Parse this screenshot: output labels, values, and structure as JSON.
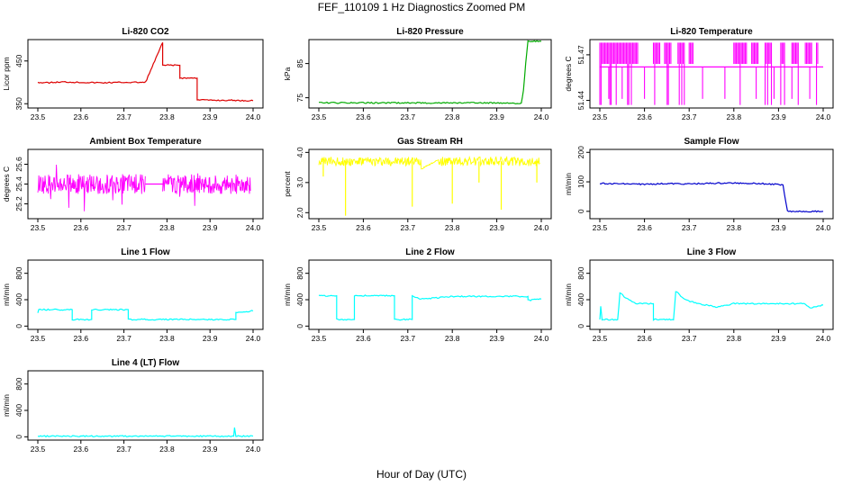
{
  "figure": {
    "title": "FEF_110109  1 Hz Diagnostics Zoomed PM",
    "xlabel": "Hour of Day (UTC)"
  },
  "chart_data": [
    {
      "type": "line",
      "title": "Li-820 CO2",
      "ylabel": "Licor ppm",
      "color": "#dd0000",
      "xlim": [
        23.5,
        24.0
      ],
      "ylim": [
        340,
        500
      ],
      "x_ticks": [
        "23.5",
        "23.6",
        "23.7",
        "23.8",
        "23.9",
        "24.0"
      ],
      "y_ticks": [
        {
          "v": 350,
          "label": "350"
        },
        {
          "v": 450,
          "label": "450"
        }
      ],
      "series": [
        {
          "name": "CO2",
          "x": [
            23.5,
            23.52,
            23.56,
            23.6,
            23.65,
            23.7,
            23.75,
            23.79,
            23.79,
            23.83,
            23.83,
            23.87,
            23.87,
            23.9,
            23.95,
            24.0
          ],
          "y": [
            400,
            399,
            401,
            400,
            399,
            400,
            400,
            493,
            440,
            440,
            410,
            410,
            360,
            358,
            358,
            357
          ]
        }
      ]
    },
    {
      "type": "line",
      "title": "Li-820 Pressure",
      "ylabel": "kPa",
      "color": "#00aa00",
      "xlim": [
        23.5,
        24.0
      ],
      "ylim": [
        72,
        92
      ],
      "x_ticks": [
        "23.5",
        "23.6",
        "23.7",
        "23.8",
        "23.9",
        "24.0"
      ],
      "y_ticks": [
        {
          "v": 75,
          "label": "75"
        },
        {
          "v": 85,
          "label": "85"
        }
      ],
      "series": [
        {
          "name": "Pressure",
          "x": [
            23.5,
            23.7,
            23.93,
            23.955,
            23.96,
            23.965,
            23.97,
            23.99,
            24.0
          ],
          "y": [
            73.5,
            73.5,
            73.5,
            73.3,
            77,
            85,
            91.5,
            91.5,
            91.5
          ]
        }
      ]
    },
    {
      "type": "line",
      "title": "Li-820 Temperature",
      "ylabel": "degrees C",
      "color": "#ff00ff",
      "xlim": [
        23.5,
        24.0
      ],
      "ylim": [
        51.435,
        51.48
      ],
      "x_ticks": [
        "23.5",
        "23.6",
        "23.7",
        "23.8",
        "23.9",
        "24.0"
      ],
      "y_ticks": [
        {
          "v": 51.44,
          "label": "51.44"
        },
        {
          "v": 51.47,
          "label": "51.47"
        }
      ],
      "series": [
        {
          "name": "Temperature",
          "baseline": 51.462,
          "high": 51.478,
          "low": 51.437,
          "bands": [
            [
              23.5,
              23.585
            ],
            [
              23.62,
              23.635
            ],
            [
              23.645,
              23.66
            ],
            [
              23.675,
              23.69
            ],
            [
              23.7,
              23.71
            ],
            [
              23.8,
              23.83
            ],
            [
              23.84,
              23.855
            ],
            [
              23.87,
              23.885
            ],
            [
              23.905,
              23.915
            ],
            [
              23.93,
              23.945
            ],
            [
              23.96,
              23.975
            ],
            [
              23.985,
              23.99
            ]
          ]
        }
      ]
    },
    {
      "type": "line",
      "title": "Ambient Box Temperature",
      "ylabel": "degrees C",
      "color": "#ff00ff",
      "xlim": [
        23.5,
        24.0
      ],
      "ylim": [
        25.05,
        25.75
      ],
      "x_ticks": [
        "23.5",
        "23.6",
        "23.7",
        "23.8",
        "23.9",
        "24.0"
      ],
      "y_ticks": [
        {
          "v": 25.2,
          "label": "25.2"
        },
        {
          "v": 25.4,
          "label": "25.4"
        },
        {
          "v": 25.6,
          "label": "25.6"
        }
      ],
      "series": [
        {
          "name": "Ambient",
          "baseline": 25.4,
          "amplitude": 0.1,
          "gap": [
            23.75,
            23.79
          ]
        }
      ]
    },
    {
      "type": "line",
      "title": "Gas Stream RH",
      "ylabel": "percent",
      "color": "#ffff00",
      "xlim": [
        23.5,
        24.0
      ],
      "ylim": [
        1.8,
        4.1
      ],
      "x_ticks": [
        "23.5",
        "23.6",
        "23.7",
        "23.8",
        "23.9",
        "24.0"
      ],
      "y_ticks": [
        {
          "v": 2.0,
          "label": "2.0"
        },
        {
          "v": 3.0,
          "label": "3.0"
        },
        {
          "v": 4.0,
          "label": "4.0"
        }
      ],
      "series": [
        {
          "name": "RH",
          "baseline": 3.7,
          "amplitude": 0.15,
          "dips": [
            [
              23.51,
              3.2
            ],
            [
              23.56,
              1.9
            ],
            [
              23.71,
              2.2
            ],
            [
              23.8,
              2.3
            ],
            [
              23.86,
              3.0
            ],
            [
              23.91,
              2.1
            ],
            [
              23.99,
              3.0
            ]
          ]
        }
      ]
    },
    {
      "type": "line",
      "title": "Sample Flow",
      "ylabel": "ml/min",
      "color": "#0000cc",
      "xlim": [
        23.5,
        24.0
      ],
      "ylim": [
        -25,
        210
      ],
      "x_ticks": [
        "23.5",
        "23.6",
        "23.7",
        "23.8",
        "23.9",
        "24.0"
      ],
      "y_ticks": [
        {
          "v": 0,
          "label": "0"
        },
        {
          "v": 100,
          "label": "100"
        },
        {
          "v": 200,
          "label": "200"
        }
      ],
      "series": [
        {
          "name": "Sample",
          "x": [
            23.5,
            23.55,
            23.6,
            23.65,
            23.7,
            23.75,
            23.8,
            23.85,
            23.91,
            23.92,
            23.95,
            24.0
          ],
          "y": [
            95,
            93,
            92,
            94,
            93,
            95,
            96,
            95,
            90,
            0,
            0,
            0
          ]
        }
      ]
    },
    {
      "type": "line",
      "title": "Line 1 Flow",
      "ylabel": "ml/min",
      "color": "#00ffff",
      "xlim": [
        23.5,
        24.0
      ],
      "ylim": [
        -50,
        1000
      ],
      "x_ticks": [
        "23.5",
        "23.6",
        "23.7",
        "23.8",
        "23.9",
        "24.0"
      ],
      "y_ticks": [
        {
          "v": 0,
          "label": "0"
        },
        {
          "v": 400,
          "label": "400"
        },
        {
          "v": 800,
          "label": "800"
        }
      ],
      "series": [
        {
          "name": "Line 1",
          "x": [
            23.5,
            23.502,
            23.58,
            23.58,
            23.625,
            23.625,
            23.71,
            23.71,
            23.96,
            23.96,
            24.0
          ],
          "y": [
            200,
            250,
            250,
            100,
            100,
            250,
            250,
            100,
            100,
            210,
            230
          ]
        }
      ]
    },
    {
      "type": "line",
      "title": "Line 2 Flow",
      "ylabel": "ml/min",
      "color": "#00ffff",
      "xlim": [
        23.5,
        24.0
      ],
      "ylim": [
        -50,
        1000
      ],
      "x_ticks": [
        "23.5",
        "23.6",
        "23.7",
        "23.8",
        "23.9",
        "24.0"
      ],
      "y_ticks": [
        {
          "v": 0,
          "label": "0"
        },
        {
          "v": 400,
          "label": "400"
        },
        {
          "v": 800,
          "label": "800"
        }
      ],
      "series": [
        {
          "name": "Line 2",
          "x": [
            23.5,
            23.54,
            23.54,
            23.58,
            23.58,
            23.67,
            23.67,
            23.71,
            23.71,
            23.73,
            23.8,
            23.97,
            23.97,
            24.0
          ],
          "y": [
            460,
            460,
            100,
            100,
            460,
            460,
            100,
            100,
            460,
            410,
            450,
            450,
            390,
            410
          ]
        }
      ]
    },
    {
      "type": "line",
      "title": "Line 3 Flow",
      "ylabel": "ml/min",
      "color": "#00ffff",
      "xlim": [
        23.5,
        24.0
      ],
      "ylim": [
        -50,
        1000
      ],
      "x_ticks": [
        "23.5",
        "23.6",
        "23.7",
        "23.8",
        "23.9",
        "24.0"
      ],
      "y_ticks": [
        {
          "v": 0,
          "label": "0"
        },
        {
          "v": 400,
          "label": "400"
        },
        {
          "v": 800,
          "label": "800"
        }
      ],
      "series": [
        {
          "name": "Line 3",
          "x": [
            23.5,
            23.502,
            23.505,
            23.54,
            23.545,
            23.56,
            23.58,
            23.62,
            23.62,
            23.625,
            23.665,
            23.67,
            23.69,
            23.72,
            23.76,
            23.8,
            23.9,
            23.96,
            23.97,
            24.0
          ],
          "y": [
            100,
            300,
            100,
            100,
            500,
            420,
            340,
            340,
            100,
            100,
            100,
            530,
            400,
            340,
            290,
            340,
            340,
            340,
            270,
            320
          ]
        }
      ]
    },
    {
      "type": "line",
      "title": "Line 4 (LT) Flow",
      "ylabel": "ml/min",
      "color": "#00ffff",
      "xlim": [
        23.5,
        24.0
      ],
      "ylim": [
        -50,
        1000
      ],
      "x_ticks": [
        "23.5",
        "23.6",
        "23.7",
        "23.8",
        "23.9",
        "24.0"
      ],
      "y_ticks": [
        {
          "v": 0,
          "label": "0"
        },
        {
          "v": 400,
          "label": "400"
        },
        {
          "v": 800,
          "label": "800"
        }
      ],
      "series": [
        {
          "name": "Line 4",
          "x": [
            23.5,
            23.6,
            23.7,
            23.8,
            23.9,
            23.955,
            23.957,
            23.96,
            23.965,
            24.0
          ],
          "y": [
            10,
            10,
            10,
            10,
            10,
            10,
            140,
            10,
            10,
            10
          ]
        }
      ]
    }
  ]
}
